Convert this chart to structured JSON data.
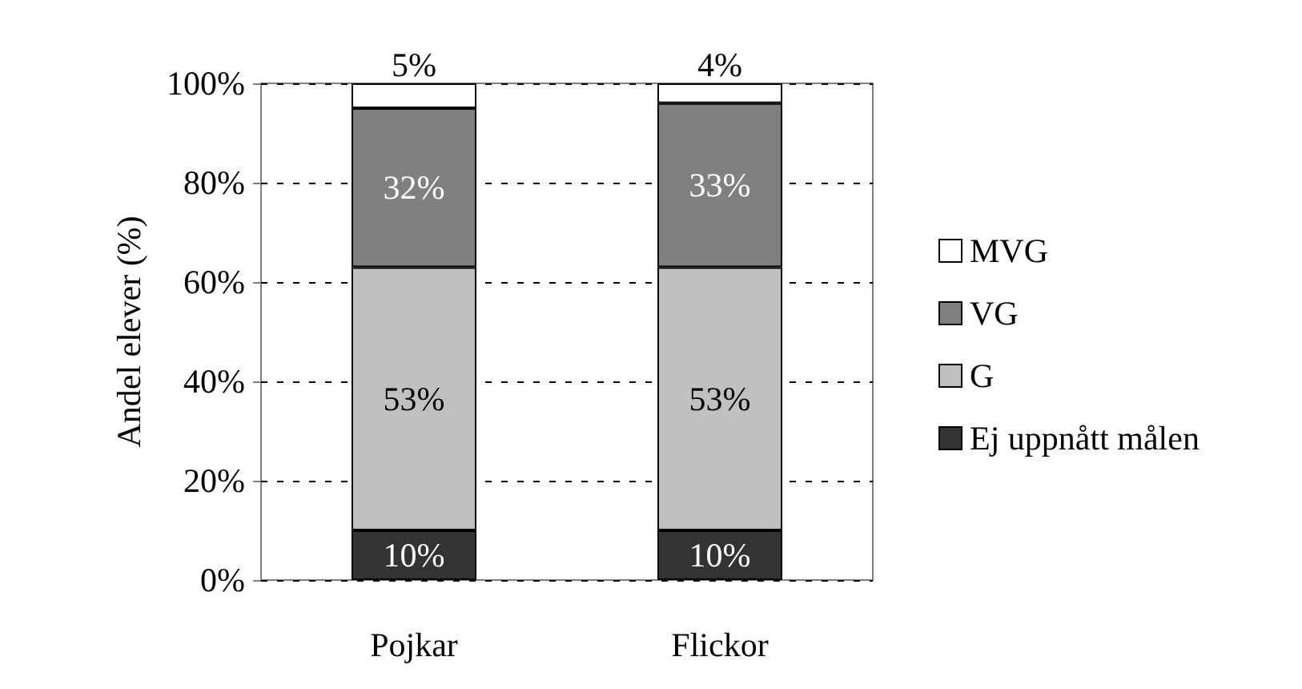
{
  "chart_data": {
    "type": "bar",
    "stacked": true,
    "ylabel": "Andel elever (%)",
    "categories": [
      "Pojkar",
      "Flickor"
    ],
    "series": [
      {
        "name": "Ej uppnått målen",
        "color": "#333333",
        "values": [
          10,
          10
        ],
        "value_labels": [
          "10%",
          "10%"
        ]
      },
      {
        "name": "G",
        "color": "#c0c0c0",
        "values": [
          53,
          53
        ],
        "value_labels": [
          "53%",
          "53%"
        ]
      },
      {
        "name": "VG",
        "color": "#808080",
        "values": [
          32,
          33
        ],
        "value_labels": [
          "32%",
          "33%"
        ]
      },
      {
        "name": "MVG",
        "color": "#ffffff",
        "values": [
          5,
          4
        ],
        "value_labels": [
          "5%",
          "4%"
        ]
      }
    ],
    "ylim": [
      0,
      100
    ],
    "yticks": [
      {
        "value": 0,
        "label": "0%"
      },
      {
        "value": 20,
        "label": "20%"
      },
      {
        "value": 40,
        "label": "40%"
      },
      {
        "value": 60,
        "label": "60%"
      },
      {
        "value": 80,
        "label": "80%"
      },
      {
        "value": 100,
        "label": "100%"
      }
    ],
    "grid": "y",
    "legend": "right"
  }
}
